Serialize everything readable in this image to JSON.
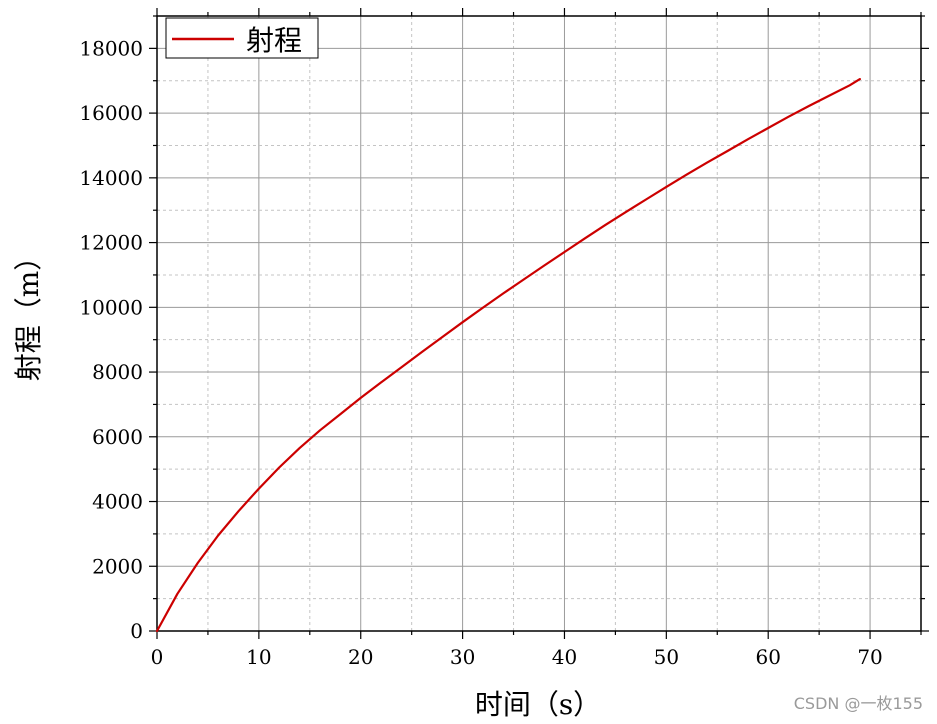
{
  "chart_data": {
    "type": "line",
    "xlabel": "时间（s）",
    "ylabel": "射程（m）",
    "xlim": [
      0,
      75
    ],
    "ylim": [
      0,
      19000
    ],
    "xticks": [
      0,
      10,
      20,
      30,
      40,
      50,
      60,
      70
    ],
    "yticks": [
      0,
      2000,
      4000,
      6000,
      8000,
      10000,
      12000,
      14000,
      16000,
      18000
    ],
    "grid": true,
    "legend_position": "top-left",
    "series": [
      {
        "name": "射程",
        "color": "#cc0000",
        "x": [
          0,
          2,
          4,
          6,
          8,
          10,
          12,
          14,
          16,
          18,
          20,
          22,
          24,
          26,
          28,
          30,
          32,
          34,
          36,
          38,
          40,
          42,
          44,
          46,
          48,
          50,
          52,
          54,
          56,
          58,
          60,
          62,
          64,
          66,
          68,
          69
        ],
        "y": [
          0,
          1150,
          2100,
          2950,
          3700,
          4400,
          5050,
          5650,
          6200,
          6700,
          7200,
          7680,
          8150,
          8620,
          9080,
          9540,
          9990,
          10430,
          10860,
          11290,
          11710,
          12130,
          12540,
          12940,
          13330,
          13720,
          14100,
          14470,
          14830,
          15190,
          15540,
          15890,
          16220,
          16540,
          16860,
          17050
        ]
      }
    ]
  },
  "watermark": "CSDN @一枚155"
}
